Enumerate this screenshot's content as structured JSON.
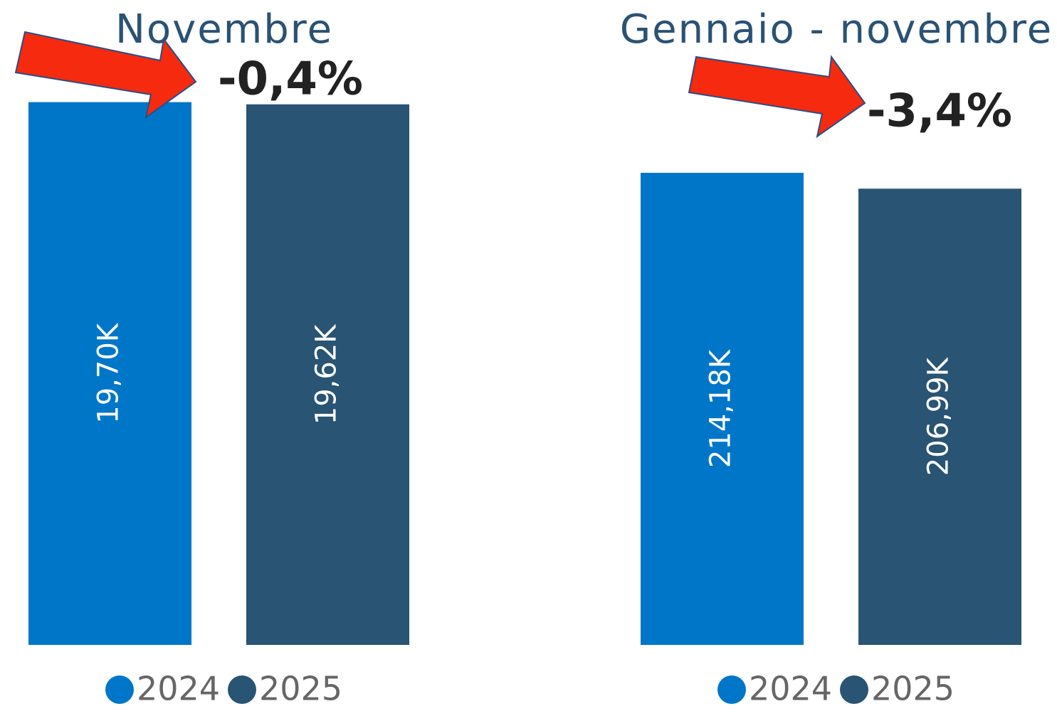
{
  "chart_data": [
    {
      "type": "bar",
      "title": "Novembre",
      "annotation": "-0,4%",
      "series": [
        {
          "name": "2024",
          "color": "#0076c8",
          "values": [
            19700
          ],
          "value_labels": [
            "19,70K"
          ]
        },
        {
          "name": "2025",
          "color": "#295473",
          "values": [
            19620
          ],
          "value_labels": [
            "19,62K"
          ]
        }
      ],
      "ylim": [
        0,
        20000
      ]
    },
    {
      "type": "bar",
      "title": "Gennaio - novembre",
      "annotation": "-3,4%",
      "series": [
        {
          "name": "2024",
          "color": "#0076c8",
          "values": [
            214180
          ],
          "value_labels": [
            "214,18K"
          ]
        },
        {
          "name": "2025",
          "color": "#295473",
          "values": [
            206990
          ],
          "value_labels": [
            "206,99K"
          ]
        }
      ],
      "ylim": [
        0,
        250000
      ]
    }
  ]
}
